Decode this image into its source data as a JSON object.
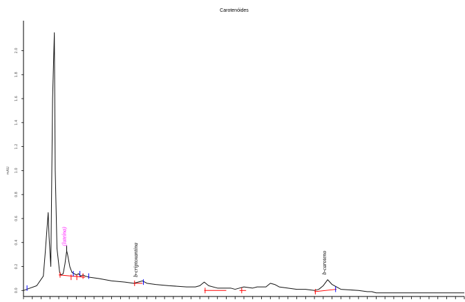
{
  "chart_data": {
    "type": "line",
    "title": "Carotenóides",
    "xlabel": "",
    "ylabel": "mAU",
    "xlim": [
      0,
      100
    ],
    "ylim": [
      -0.05,
      2.25
    ],
    "y_ticks": [
      0.0,
      0.2,
      0.4,
      0.6,
      0.8,
      1.0,
      1.2,
      1.4,
      1.6,
      1.8,
      2.0
    ],
    "y_tick_labels": [
      "0.0",
      "0.2",
      "0.4",
      "0.6",
      "0.8",
      "1.0",
      "1.2",
      "1.4",
      "1.6",
      "1.8",
      "2.0"
    ],
    "x_tick_count": 50,
    "grid": false,
    "series": [
      {
        "color": "#111111",
        "x": [
          0,
          1.5,
          3,
          4.5,
          4.9,
          5.3,
          5.6,
          5.8,
          6.2,
          6.6,
          7.0,
          7.2,
          7.6,
          8.2,
          8.5,
          9.0,
          9.4,
          9.8,
          10.0,
          10.5,
          11.0,
          11.5,
          12,
          12.5,
          13,
          13.5,
          14,
          15,
          17,
          20,
          23,
          25,
          26,
          27,
          28,
          30,
          33,
          37,
          39,
          40,
          41,
          42,
          44,
          47,
          48,
          49,
          50,
          52,
          53,
          55,
          56,
          57,
          58,
          60,
          62,
          64,
          66,
          67,
          68,
          69,
          70,
          72,
          76,
          78,
          79,
          80,
          81,
          82,
          84,
          88,
          92,
          96,
          100
        ],
        "y": [
          0.0,
          0.02,
          0.04,
          0.12,
          0.3,
          0.5,
          0.65,
          0.45,
          0.2,
          1.6,
          2.15,
          1.0,
          0.35,
          0.15,
          0.13,
          0.14,
          0.22,
          0.33,
          0.3,
          0.2,
          0.15,
          0.14,
          0.13,
          0.14,
          0.12,
          0.13,
          0.12,
          0.11,
          0.1,
          0.08,
          0.07,
          0.06,
          0.07,
          0.08,
          0.06,
          0.05,
          0.04,
          0.03,
          0.03,
          0.04,
          0.07,
          0.04,
          0.02,
          0.02,
          0.01,
          0.02,
          0.03,
          0.02,
          0.03,
          0.03,
          0.06,
          0.05,
          0.03,
          0.02,
          0.01,
          0.01,
          0.0,
          0.01,
          0.04,
          0.09,
          0.05,
          0.01,
          0.0,
          -0.01,
          -0.01,
          -0.02,
          -0.02,
          -0.02,
          -0.02,
          -0.02,
          -0.02,
          -0.02,
          -0.02
        ]
      }
    ],
    "annotations": [
      {
        "text": "(luteína)",
        "x": 9.8,
        "y": 0.36,
        "color": "#ff00ff",
        "rotation": -90
      },
      {
        "text": "b-criptoxantina",
        "x": 26.0,
        "y": 0.1,
        "color": "#000000",
        "rotation": -90
      },
      {
        "text": "b-caroteno",
        "x": 68.8,
        "y": 0.12,
        "color": "#000000",
        "rotation": -90
      }
    ],
    "baselines": [
      {
        "x": [
          8.0,
          14.0
        ],
        "y": [
          0.13,
          0.11
        ],
        "color": "#ff0000"
      },
      {
        "x": [
          25.0,
          27.0
        ],
        "y": [
          0.06,
          0.06
        ],
        "color": "#ff0000"
      },
      {
        "x": [
          41.0,
          46.0
        ],
        "y": [
          0.0,
          0.0
        ],
        "color": "#ff0000"
      },
      {
        "x": [
          49.0,
          50.5
        ],
        "y": [
          0.0,
          0.0
        ],
        "color": "#ff0000"
      },
      {
        "x": [
          66.0,
          71.0
        ],
        "y": [
          -0.01,
          0.01
        ],
        "color": "#ff0000"
      }
    ],
    "markers": [
      {
        "x": 0.8,
        "y": 0.02,
        "color": "#0000ff"
      },
      {
        "x": 8.3,
        "y": 0.13,
        "color": "#ff0000"
      },
      {
        "x": 9.8,
        "y": 0.35,
        "color": "#000000"
      },
      {
        "x": 10.8,
        "y": 0.11,
        "color": "#ff0000"
      },
      {
        "x": 11.3,
        "y": 0.14,
        "color": "#0000ff"
      },
      {
        "x": 12.1,
        "y": 0.11,
        "color": "#ff0000"
      },
      {
        "x": 12.8,
        "y": 0.14,
        "color": "#0000ff"
      },
      {
        "x": 13.5,
        "y": 0.12,
        "color": "#ff0000"
      },
      {
        "x": 14.8,
        "y": 0.12,
        "color": "#0000ff"
      },
      {
        "x": 25.2,
        "y": 0.06,
        "color": "#ff0000"
      },
      {
        "x": 27.2,
        "y": 0.07,
        "color": "#0000ff"
      },
      {
        "x": 41.2,
        "y": 0.0,
        "color": "#ff0000"
      },
      {
        "x": 49.5,
        "y": 0.0,
        "color": "#ff0000"
      },
      {
        "x": 66.2,
        "y": -0.01,
        "color": "#ff0000"
      },
      {
        "x": 70.8,
        "y": 0.01,
        "color": "#0000ff"
      }
    ]
  }
}
